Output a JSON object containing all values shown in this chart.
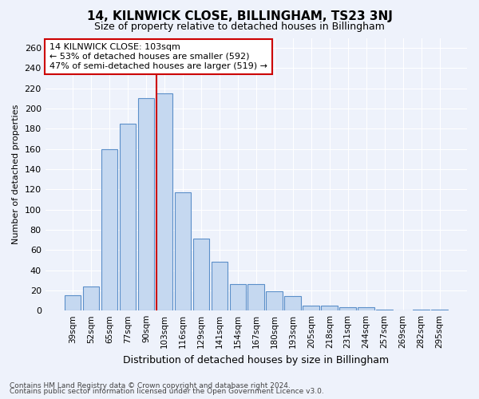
{
  "title": "14, KILNWICK CLOSE, BILLINGHAM, TS23 3NJ",
  "subtitle": "Size of property relative to detached houses in Billingham",
  "xlabel": "Distribution of detached houses by size in Billingham",
  "ylabel": "Number of detached properties",
  "categories": [
    "39sqm",
    "52sqm",
    "65sqm",
    "77sqm",
    "90sqm",
    "103sqm",
    "116sqm",
    "129sqm",
    "141sqm",
    "154sqm",
    "167sqm",
    "180sqm",
    "193sqm",
    "205sqm",
    "218sqm",
    "231sqm",
    "244sqm",
    "257sqm",
    "269sqm",
    "282sqm",
    "295sqm"
  ],
  "values": [
    15,
    24,
    160,
    185,
    210,
    215,
    117,
    71,
    48,
    26,
    26,
    19,
    14,
    5,
    5,
    3,
    3,
    1,
    0,
    1,
    1
  ],
  "bar_color": "#c5d8f0",
  "bar_edge_color": "#5b8fc9",
  "highlight_index": 5,
  "highlight_line_color": "#cc0000",
  "ylim": [
    0,
    270
  ],
  "yticks": [
    0,
    20,
    40,
    60,
    80,
    100,
    120,
    140,
    160,
    180,
    200,
    220,
    240,
    260
  ],
  "annotation_text": "14 KILNWICK CLOSE: 103sqm\n← 53% of detached houses are smaller (592)\n47% of semi-detached houses are larger (519) →",
  "annotation_box_facecolor": "#ffffff",
  "annotation_box_edgecolor": "#cc0000",
  "footer_line1": "Contains HM Land Registry data © Crown copyright and database right 2024.",
  "footer_line2": "Contains public sector information licensed under the Open Government Licence v3.0.",
  "background_color": "#eef2fb",
  "grid_color": "#ffffff",
  "title_fontsize": 11,
  "subtitle_fontsize": 9,
  "xlabel_fontsize": 9,
  "ylabel_fontsize": 8,
  "tick_fontsize": 8,
  "xtick_fontsize": 7.5,
  "annotation_fontsize": 8,
  "footer_fontsize": 6.5
}
